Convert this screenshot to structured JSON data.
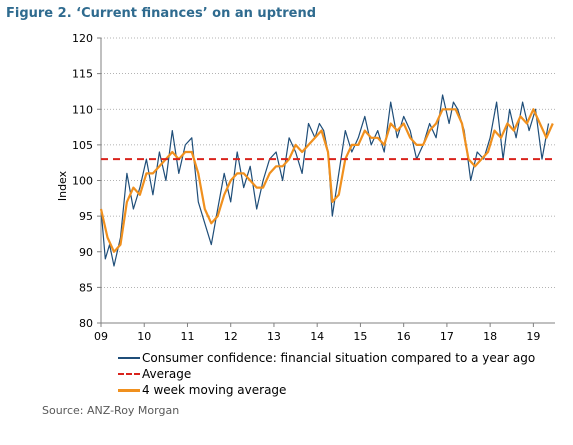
{
  "title": "Figure 2. ‘Current finances’ on an uptrend",
  "source": "Source: ANZ-Roy Morgan",
  "colors": {
    "confidence": "#1f4e79",
    "average": "#d9231c",
    "moving_average": "#f0901e",
    "title": "#2f6b8f"
  },
  "chart_data": {
    "type": "line",
    "title": "Figure 2. ‘Current finances’ on an uptrend",
    "ylabel": "Index",
    "xlabel": "",
    "ylim": [
      80,
      120
    ],
    "xlim": [
      2009,
      2019.5
    ],
    "yticks": [
      80,
      85,
      90,
      95,
      100,
      105,
      110,
      115,
      120
    ],
    "xticks": [
      {
        "value": 2009,
        "label": "09"
      },
      {
        "value": 2010,
        "label": "10"
      },
      {
        "value": 2011,
        "label": "11"
      },
      {
        "value": 2012,
        "label": "12"
      },
      {
        "value": 2013,
        "label": "13"
      },
      {
        "value": 2014,
        "label": "14"
      },
      {
        "value": 2015,
        "label": "15"
      },
      {
        "value": 2016,
        "label": "16"
      },
      {
        "value": 2017,
        "label": "17"
      },
      {
        "value": 2018,
        "label": "18"
      },
      {
        "value": 2019,
        "label": "19"
      }
    ],
    "grid": "horizontal dotted",
    "legend_position": "bottom",
    "series": [
      {
        "name": "Consumer confidence: financial situation compared to a year ago",
        "style": "solid",
        "x": [
          2009.0,
          2009.1,
          2009.2,
          2009.3,
          2009.45,
          2009.6,
          2009.75,
          2009.9,
          2010.05,
          2010.2,
          2010.35,
          2010.5,
          2010.65,
          2010.8,
          2010.95,
          2011.1,
          2011.25,
          2011.4,
          2011.55,
          2011.7,
          2011.85,
          2012.0,
          2012.15,
          2012.3,
          2012.45,
          2012.6,
          2012.75,
          2012.9,
          2013.05,
          2013.2,
          2013.35,
          2013.5,
          2013.65,
          2013.8,
          2013.95,
          2014.05,
          2014.15,
          2014.25,
          2014.35,
          2014.5,
          2014.65,
          2014.8,
          2014.95,
          2015.1,
          2015.25,
          2015.4,
          2015.55,
          2015.7,
          2015.85,
          2016.0,
          2016.15,
          2016.3,
          2016.45,
          2016.6,
          2016.75,
          2016.9,
          2017.05,
          2017.15,
          2017.25,
          2017.4,
          2017.55,
          2017.7,
          2017.85,
          2018.0,
          2018.15,
          2018.3,
          2018.45,
          2018.6,
          2018.75,
          2018.9,
          2019.05,
          2019.2,
          2019.35
        ],
        "values": [
          96,
          89,
          91,
          88,
          92,
          101,
          96,
          99,
          103,
          98,
          104,
          100,
          107,
          101,
          105,
          106,
          97,
          94,
          91,
          96,
          101,
          97,
          104,
          99,
          102,
          96,
          100,
          103,
          104,
          100,
          106,
          104,
          101,
          108,
          106,
          108,
          107,
          104,
          95,
          101,
          107,
          104,
          106,
          109,
          105,
          107,
          104,
          111,
          106,
          109,
          107,
          103,
          105,
          108,
          106,
          112,
          108,
          111,
          110,
          107,
          100,
          104,
          103,
          106,
          111,
          103,
          110,
          106,
          111,
          107,
          110,
          103,
          108
        ]
      },
      {
        "name": "Average",
        "style": "dashed",
        "x": [
          2009.0,
          2019.5
        ],
        "values": [
          103,
          103
        ]
      },
      {
        "name": "4 week moving average",
        "style": "solid-thick",
        "x": [
          2009.0,
          2009.15,
          2009.3,
          2009.45,
          2009.6,
          2009.75,
          2009.9,
          2010.05,
          2010.2,
          2010.35,
          2010.5,
          2010.65,
          2010.8,
          2010.95,
          2011.1,
          2011.25,
          2011.4,
          2011.55,
          2011.7,
          2011.85,
          2012.0,
          2012.15,
          2012.3,
          2012.45,
          2012.6,
          2012.75,
          2012.9,
          2013.05,
          2013.2,
          2013.35,
          2013.5,
          2013.65,
          2013.8,
          2013.95,
          2014.1,
          2014.25,
          2014.35,
          2014.5,
          2014.65,
          2014.8,
          2014.95,
          2015.1,
          2015.25,
          2015.4,
          2015.55,
          2015.7,
          2015.85,
          2016.0,
          2016.15,
          2016.3,
          2016.45,
          2016.6,
          2016.75,
          2016.9,
          2017.05,
          2017.2,
          2017.35,
          2017.5,
          2017.65,
          2017.8,
          2017.95,
          2018.1,
          2018.25,
          2018.4,
          2018.55,
          2018.7,
          2018.85,
          2019.0,
          2019.15,
          2019.3,
          2019.45
        ],
        "values": [
          96,
          92,
          90,
          91,
          97,
          99,
          98,
          101,
          101,
          102,
          103,
          104,
          103,
          104,
          104,
          101,
          96,
          94,
          95,
          98,
          100,
          101,
          101,
          100,
          99,
          99,
          101,
          102,
          102,
          103,
          105,
          104,
          105,
          106,
          107,
          104,
          97,
          98,
          103,
          105,
          105,
          107,
          106,
          106,
          105,
          108,
          107,
          108,
          106,
          105,
          105,
          107,
          108,
          110,
          110,
          110,
          108,
          103,
          102,
          103,
          104,
          107,
          106,
          108,
          107,
          109,
          108,
          110,
          108,
          106,
          108
        ]
      }
    ]
  },
  "legend": {
    "confidence": "Consumer confidence: financial situation compared to a year ago",
    "average": "Average",
    "moving_average": "4 week moving average"
  }
}
